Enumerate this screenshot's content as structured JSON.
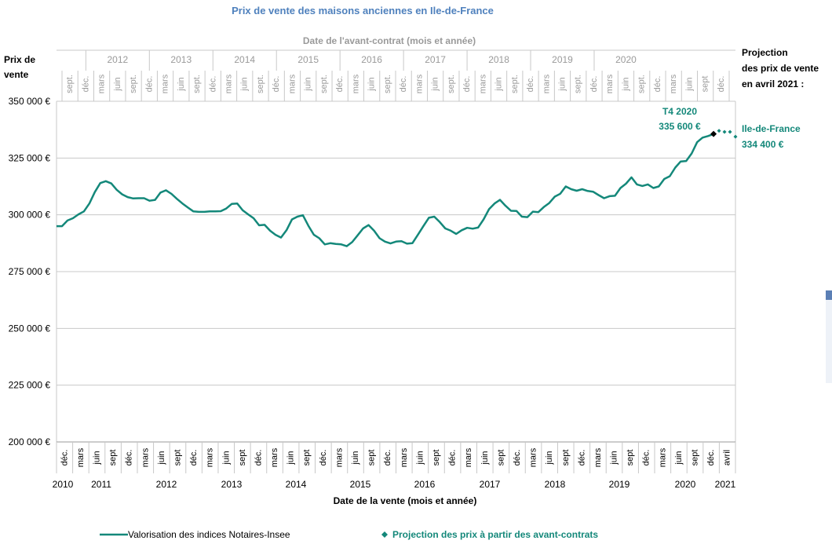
{
  "colors": {
    "series_line": "#14887a",
    "projection": "#14887a",
    "t4_marker": "#000000",
    "title": "#4f81bd",
    "top_axis_text": "#9a9a9a",
    "grid": "#c8c8c8",
    "text": "#000000"
  },
  "chart_data": {
    "type": "line",
    "title": "Prix de vente des maisons anciennes en Ile-de-France",
    "top_axis_title": "Date de l'avant-contrat (mois et année)",
    "xlabel": "Date de la vente (mois et année)",
    "ylabel": "Prix de vente",
    "ylim": [
      200000,
      350000
    ],
    "y_ticks": [
      {
        "value": 350000,
        "label": "350 000 €"
      },
      {
        "value": 325000,
        "label": "325 000 €"
      },
      {
        "value": 300000,
        "label": "300 000 €"
      },
      {
        "value": 275000,
        "label": "275 000 €"
      },
      {
        "value": 250000,
        "label": "250 000 €"
      },
      {
        "value": 225000,
        "label": "225 000 €"
      },
      {
        "value": 200000,
        "label": "200 000 €"
      }
    ],
    "grid": true,
    "bottom_months": [
      "déc.",
      "mars",
      "juin",
      "sept",
      "déc.",
      "mars",
      "juin",
      "sept",
      "déc.",
      "mars",
      "juin",
      "sept",
      "déc.",
      "mars",
      "juin",
      "sept",
      "déc.",
      "mars",
      "juin",
      "sept",
      "déc.",
      "mars",
      "juin",
      "sept",
      "déc.",
      "mars",
      "juin",
      "sept",
      "déc.",
      "mars",
      "juin",
      "sept",
      "déc.",
      "mars",
      "juin",
      "sept",
      "déc.",
      "mars",
      "juin",
      "sept",
      "déc.",
      "avril"
    ],
    "bottom_years": [
      "2010",
      "2011",
      "2012",
      "2013",
      "2014",
      "2015",
      "2016",
      "2017",
      "2018",
      "2019",
      "2020",
      "2021"
    ],
    "top_months": [
      "sept.",
      "déc.",
      "mars",
      "juin",
      "sept.",
      "déc.",
      "mars",
      "juin",
      "sept.",
      "déc.",
      "mars",
      "juin",
      "sept.",
      "déc.",
      "mars",
      "juin",
      "sept.",
      "déc.",
      "mars",
      "juin",
      "sept.",
      "déc.",
      "mars",
      "juin",
      "sept.",
      "déc.",
      "mars",
      "juin",
      "sept.",
      "déc.",
      "mars",
      "juin",
      "sept.",
      "déc.",
      "mars",
      "juin",
      "sept.",
      "déc.",
      "mars",
      "juin",
      "sept",
      "déc."
    ],
    "top_years": [
      "2012",
      "2013",
      "2014",
      "2015",
      "2016",
      "2017",
      "2018",
      "2019",
      "2020"
    ],
    "series": [
      {
        "name": "Valorisation des indices Notaires-Insee",
        "x": [
          "2010-12",
          "2011-01",
          "2011-02",
          "2011-03",
          "2011-04",
          "2011-05",
          "2011-06",
          "2011-07",
          "2011-08",
          "2011-09",
          "2011-10",
          "2011-11",
          "2011-12",
          "2012-01",
          "2012-02",
          "2012-03",
          "2012-04",
          "2012-05",
          "2012-06",
          "2012-07",
          "2012-08",
          "2012-09",
          "2012-10",
          "2012-11",
          "2012-12",
          "2013-01",
          "2013-02",
          "2013-03",
          "2013-04",
          "2013-05",
          "2013-06",
          "2013-07",
          "2013-08",
          "2013-09",
          "2013-10",
          "2013-11",
          "2013-12",
          "2014-01",
          "2014-02",
          "2014-03",
          "2014-04",
          "2014-05",
          "2014-06",
          "2014-07",
          "2014-08",
          "2014-09",
          "2014-10",
          "2014-11",
          "2014-12",
          "2015-01",
          "2015-02",
          "2015-03",
          "2015-04",
          "2015-05",
          "2015-06",
          "2015-07",
          "2015-08",
          "2015-09",
          "2015-10",
          "2015-11",
          "2015-12",
          "2016-01",
          "2016-02",
          "2016-03",
          "2016-04",
          "2016-05",
          "2016-06",
          "2016-07",
          "2016-08",
          "2016-09",
          "2016-10",
          "2016-11",
          "2016-12",
          "2017-01",
          "2017-02",
          "2017-03",
          "2017-04",
          "2017-05",
          "2017-06",
          "2017-07",
          "2017-08",
          "2017-09",
          "2017-10",
          "2017-11",
          "2017-12",
          "2018-01",
          "2018-02",
          "2018-03",
          "2018-04",
          "2018-05",
          "2018-06",
          "2018-07",
          "2018-08",
          "2018-09",
          "2018-10",
          "2018-11",
          "2018-12",
          "2019-01",
          "2019-02",
          "2019-03",
          "2019-04",
          "2019-05",
          "2019-06",
          "2019-07",
          "2019-08",
          "2019-09",
          "2019-10",
          "2019-11",
          "2019-12",
          "2020-01",
          "2020-02",
          "2020-03",
          "2020-04",
          "2020-05",
          "2020-06",
          "2020-07",
          "2020-08",
          "2020-09",
          "2020-10",
          "2020-11",
          "2020-12"
        ],
        "values": [
          295000,
          295000,
          297500,
          298500,
          300200,
          301500,
          305000,
          310000,
          314000,
          314800,
          313800,
          311000,
          309000,
          307800,
          307200,
          307300,
          307300,
          306200,
          306600,
          309800,
          310800,
          309200,
          307000,
          305000,
          303200,
          301500,
          301300,
          301300,
          301500,
          301500,
          301600,
          302800,
          304800,
          305000,
          302000,
          300200,
          298500,
          295400,
          295600,
          293000,
          291200,
          290000,
          293200,
          298000,
          299200,
          299800,
          295200,
          291200,
          289700,
          287000,
          287500,
          287200,
          287000,
          286200,
          288000,
          291000,
          294000,
          295500,
          293000,
          289700,
          288200,
          287400,
          288200,
          288400,
          287300,
          287500,
          291200,
          295000,
          298700,
          299200,
          296800,
          294000,
          293000,
          291600,
          293200,
          294300,
          293900,
          294400,
          298000,
          302500,
          305000,
          306600,
          304000,
          301800,
          301700,
          299200,
          299000,
          301400,
          301200,
          303400,
          305200,
          308000,
          309300,
          312500,
          311300,
          310600,
          311300,
          310500,
          310200,
          308700,
          307300,
          308200,
          308400,
          311800,
          313700,
          316500,
          313400,
          312700,
          313400,
          311800,
          312500,
          315800,
          317000,
          320800,
          323500,
          323700,
          327000,
          332000,
          334000,
          334700,
          335600
        ]
      },
      {
        "name": "Projection des prix à partir des avant-contrats",
        "x": [
          "2021-01",
          "2021-02",
          "2021-03",
          "2021-04"
        ],
        "values": [
          337000,
          336500,
          336500,
          334400
        ]
      }
    ],
    "annotations": {
      "t4_label": "T4 2020",
      "t4_value": "335 600 €",
      "projection_header": [
        "Projection",
        "des prix de vente",
        "en avril 2021 :"
      ],
      "region_label": "Ile-de-France",
      "region_value": "334 400 €"
    },
    "legend": {
      "placement": "bottom",
      "items": [
        {
          "label": "Valorisation des indices Notaires-Insee",
          "marker": "line"
        },
        {
          "label": "Projection des prix à partir des avant-contrats",
          "marker": "diamond",
          "bold": true
        }
      ]
    }
  }
}
